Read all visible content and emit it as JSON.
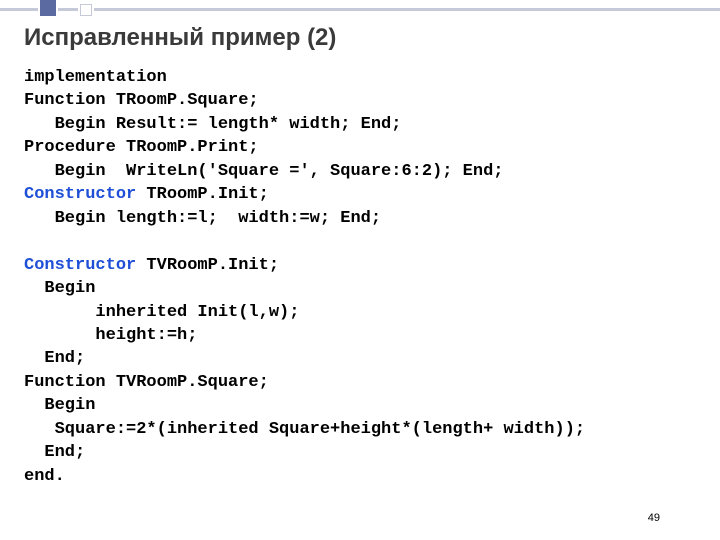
{
  "title": "Исправленный пример (2)",
  "page_number": "49",
  "code": {
    "l1": "implementation",
    "l2": "Function TRoomP.Square;",
    "l3": "   Begin Result:= length* width; End;",
    "l4": "Procedure TRoomP.Print;",
    "l5": "   Begin  WriteLn('Square =', Square:6:2); End;",
    "l6_kw": "Constructor",
    "l6_rest": " TRoomP.Init;",
    "l7": "   Begin length:=l;  width:=w; End;",
    "blank": "",
    "l8_kw": "Constructor",
    "l8_rest": " TVRoomP.Init;",
    "l9": "  Begin",
    "l10": "       inherited Init(l,w);",
    "l11": "       height:=h;",
    "l12": "  End;",
    "l13": "Function TVRoomP.Square;",
    "l14": "  Begin",
    "l15": "   Square:=2*(inherited Square+height*(length+ width));",
    "l16": "  End;",
    "l17": "end."
  },
  "colors": {
    "keyword": "#1e4fd6",
    "text": "#000000",
    "title": "#3a3a3a",
    "deco_dark": "#5b6aa0",
    "deco_light": "#c5c9d8",
    "background": "#ffffff"
  },
  "fonts": {
    "title_size_pt": 18,
    "code_size_pt": 13,
    "code_family": "Courier New",
    "title_family": "Arial"
  }
}
